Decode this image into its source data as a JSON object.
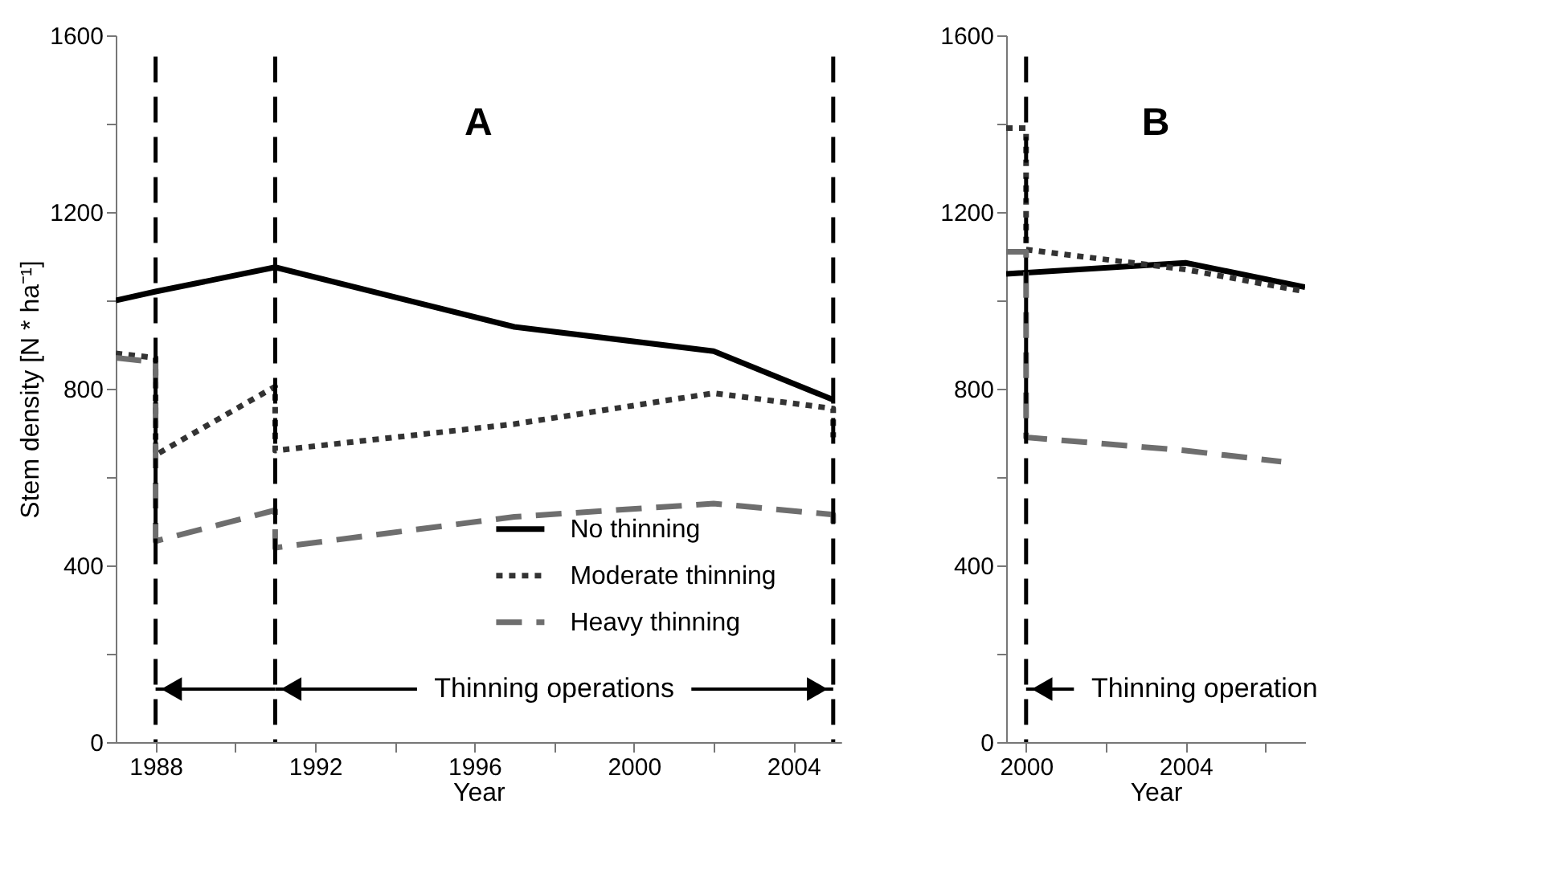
{
  "chart_data": [
    {
      "type": "line",
      "title": "A",
      "xlabel": "Year",
      "ylabel": "Stem density [N * ha⁻¹]",
      "xlim": [
        1987,
        2005.2
      ],
      "ylim": [
        0,
        1600
      ],
      "xticks": [
        1988,
        {
          "value": 1990,
          "label": null
        },
        1992,
        {
          "value": 1994,
          "label": null
        },
        1996,
        {
          "value": 1998,
          "label": null
        },
        2000,
        {
          "value": 2002,
          "label": null
        },
        2004
      ],
      "yticks": [
        0,
        {
          "value": 200,
          "label": null
        },
        400,
        {
          "value": 600,
          "label": null
        },
        800,
        {
          "value": 1000,
          "label": null
        },
        1200,
        {
          "value": 1400,
          "label": null
        },
        1600
      ],
      "grid": false,
      "legend": "bottom right",
      "series": [
        {
          "name": "No thinning",
          "color": "#000000",
          "line_style": "solid",
          "x": [
            1987,
            1988,
            1991,
            1997,
            2002,
            2005
          ],
          "values": [
            1000,
            1020,
            1075,
            940,
            885,
            775
          ]
        },
        {
          "name": "Moderate thinning",
          "color": "#333333",
          "line_style": "dotted",
          "x": [
            1987,
            1988,
            1988,
            1991,
            1991,
            1997,
            2002,
            2005,
            2005
          ],
          "values": [
            880,
            870,
            650,
            805,
            660,
            720,
            790,
            755,
            690
          ]
        },
        {
          "name": "Heavy thinning",
          "color": "#6e6e6e",
          "line_style": "dashed",
          "x": [
            1987,
            1988,
            1988,
            1991,
            1991,
            1997,
            2002,
            2005,
            2005
          ],
          "values": [
            870,
            860,
            455,
            525,
            440,
            510,
            540,
            515,
            480
          ]
        }
      ],
      "ref_lines": [
        {
          "axis": "x",
          "value": 1988,
          "color": "#000000",
          "line_style": "dashed"
        },
        {
          "axis": "x",
          "value": 1991,
          "color": "#000000",
          "line_style": "dashed"
        },
        {
          "axis": "x",
          "value": 2005,
          "color": "#000000",
          "line_style": "dashed"
        }
      ],
      "annotations": [
        {
          "text": "Thinning operations",
          "x": 2005,
          "y": 120
        }
      ]
    },
    {
      "type": "line",
      "title": "B",
      "xlabel": "Year",
      "xlim": [
        1999.5,
        2007
      ],
      "ylim": [
        0,
        1600
      ],
      "xticks": [
        2000,
        {
          "value": 2002,
          "label": null
        },
        2004,
        {
          "value": 2006,
          "label": null
        }
      ],
      "yticks": [
        0,
        {
          "value": 200,
          "label": null
        },
        400,
        {
          "value": 600,
          "label": null
        },
        800,
        {
          "value": 1000,
          "label": null
        },
        1200,
        {
          "value": 1400,
          "label": null
        },
        1600
      ],
      "grid": false,
      "series": [
        {
          "color": "#000000",
          "line_style": "solid",
          "x": [
            1999.5,
            2004,
            2007
          ],
          "values": [
            1060,
            1085,
            1030
          ]
        },
        {
          "color": "#333333",
          "line_style": "dotted",
          "x": [
            1999.5,
            2000,
            2000,
            2004,
            2007
          ],
          "values": [
            1390,
            1390,
            1115,
            1070,
            1020
          ]
        },
        {
          "color": "#6e6e6e",
          "line_style": "dashed",
          "x": [
            1999.5,
            2000,
            2000,
            2004,
            2006.4
          ],
          "values": [
            1110,
            1110,
            690,
            660,
            635
          ]
        }
      ],
      "ref_lines": [
        {
          "axis": "x",
          "value": 2000,
          "color": "#000000",
          "line_style": "dashed"
        }
      ],
      "annotations": [
        {
          "text": "Thinning operation",
          "x": 2000,
          "y": 120
        }
      ]
    }
  ]
}
